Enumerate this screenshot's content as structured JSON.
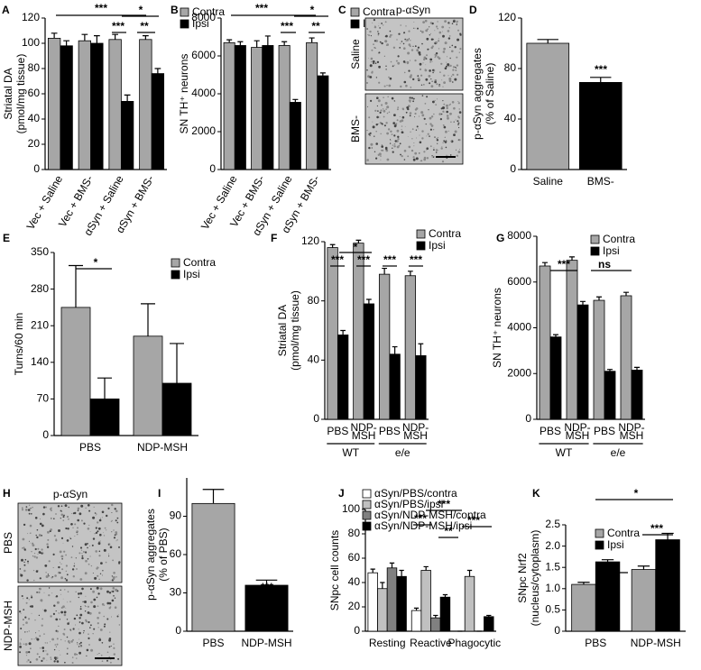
{
  "chart_data": [
    {
      "type": "bar",
      "panel": "A",
      "y_label": [
        "Striatal DA",
        "(pmol/mg tissue)"
      ],
      "categories": [
        "Vec + Saline",
        "Vec + BMS-",
        "αSyn + Saline",
        "αSyn + BMS-"
      ],
      "series": [
        {
          "name": "Contra",
          "color": "#a6a6a6",
          "values": [
            104,
            102,
            103,
            103
          ],
          "errors": [
            4,
            5,
            4,
            3
          ]
        },
        {
          "name": "Ipsi",
          "color": "#000000",
          "values": [
            98,
            100,
            54,
            76
          ],
          "errors": [
            4,
            6,
            5,
            4
          ]
        }
      ],
      "ylim": [
        0,
        120
      ],
      "yticks": [
        0,
        20,
        40,
        60,
        80,
        100,
        120
      ],
      "annotations": [
        "***",
        "*",
        "***",
        "**"
      ]
    },
    {
      "type": "bar",
      "panel": "B",
      "y_label": [
        "SN TH⁺ neurons"
      ],
      "categories": [
        "Vec + Saline",
        "Vec + BMS-",
        "αSyn + Saline",
        "αSyn + BMS-"
      ],
      "series": [
        {
          "name": "Contra",
          "color": "#a6a6a6",
          "values": [
            6700,
            6450,
            6550,
            6700
          ],
          "errors": [
            150,
            350,
            200,
            250
          ]
        },
        {
          "name": "Ipsi",
          "color": "#000000",
          "values": [
            6550,
            6550,
            3550,
            4950
          ],
          "errors": [
            200,
            500,
            150,
            150
          ]
        }
      ],
      "ylim": [
        0,
        8000
      ],
      "yticks": [
        0,
        2000,
        4000,
        6000,
        8000
      ],
      "annotations": [
        "***",
        "*",
        "***",
        "**"
      ]
    },
    {
      "type": "image",
      "panel": "C",
      "title": "p-αSyn",
      "labels": [
        "Saline",
        "BMS-"
      ]
    },
    {
      "type": "bar",
      "panel": "D",
      "y_label": [
        "p-αSyn aggregates",
        "(% of Saline)"
      ],
      "categories": [
        "Saline",
        "BMS-"
      ],
      "values": [
        100,
        69
      ],
      "errors": [
        3,
        4
      ],
      "colors": [
        "#a6a6a6",
        "#000000"
      ],
      "ylim": [
        0,
        120
      ],
      "yticks": [
        0,
        40,
        80,
        120
      ],
      "annotations": [
        "***"
      ]
    },
    {
      "type": "bar",
      "panel": "E",
      "y_label": [
        "Turns/60 min"
      ],
      "categories": [
        "PBS",
        "NDP-MSH"
      ],
      "series": [
        {
          "name": "Contra",
          "color": "#a6a6a6",
          "values": [
            245,
            190
          ],
          "errors": [
            80,
            62
          ]
        },
        {
          "name": "Ipsi",
          "color": "#000000",
          "values": [
            70,
            100
          ],
          "errors": [
            40,
            76
          ]
        }
      ],
      "ylim": [
        0,
        350
      ],
      "yticks": [
        0,
        70,
        140,
        210,
        280,
        350
      ],
      "annotations": [
        "*"
      ]
    },
    {
      "type": "bar",
      "panel": "F",
      "y_label": [
        "Striatal DA",
        "(pmol/mg tissue)"
      ],
      "categories": [
        [
          "PBS"
        ],
        [
          "NDP-",
          "MSH"
        ],
        [
          "PBS"
        ],
        [
          "NDP-",
          "MSH"
        ]
      ],
      "groups": [
        "WT",
        "e/e"
      ],
      "series": [
        {
          "name": "Contra",
          "color": "#a6a6a6",
          "values": [
            116,
            119,
            98,
            97
          ],
          "errors": [
            2,
            2,
            4,
            3
          ]
        },
        {
          "name": "Ipsi",
          "color": "#000000",
          "values": [
            57,
            78,
            44,
            43
          ],
          "errors": [
            3,
            3,
            5,
            8
          ]
        }
      ],
      "ylim": [
        0,
        120
      ],
      "yticks": [
        0,
        40,
        80,
        120
      ],
      "annotations": [
        "***",
        "***",
        "***",
        "***",
        "*"
      ]
    },
    {
      "type": "bar",
      "panel": "G",
      "y_label": [
        "SN TH⁺ neurons"
      ],
      "categories": [
        [
          "PBS"
        ],
        [
          "NDP-",
          "MSH"
        ],
        [
          "PBS"
        ],
        [
          "NDP-",
          "MSH"
        ]
      ],
      "groups": [
        "WT",
        "e/e"
      ],
      "series": [
        {
          "name": "Contra",
          "color": "#a6a6a6",
          "values": [
            6700,
            6950,
            5200,
            5400
          ],
          "errors": [
            150,
            150,
            150,
            150
          ]
        },
        {
          "name": "Ipsi",
          "color": "#000000",
          "values": [
            3600,
            5000,
            2100,
            2150
          ],
          "errors": [
            100,
            150,
            80,
            120
          ]
        }
      ],
      "ylim": [
        0,
        8000
      ],
      "yticks": [
        0,
        2000,
        4000,
        6000,
        8000
      ],
      "annotations": [
        "***",
        "ns"
      ]
    },
    {
      "type": "image",
      "panel": "H",
      "title": "p-αSyn",
      "labels": [
        "PBS",
        "NDP-MSH"
      ]
    },
    {
      "type": "bar",
      "panel": "I",
      "y_label": [
        "p-αSyn aggregates",
        "(% of PBS)"
      ],
      "categories": [
        "PBS",
        "NDP-MSH"
      ],
      "values": [
        100,
        36
      ],
      "errors": [
        11,
        4
      ],
      "colors": [
        "#a6a6a6",
        "#000000"
      ],
      "ylim": [
        0,
        120
      ],
      "yticks": [
        0,
        30,
        60,
        90
      ],
      "annotations": [
        "***"
      ]
    },
    {
      "type": "bar",
      "panel": "J",
      "y_label": [
        "SNpc cell counts"
      ],
      "categories": [
        "Resting",
        "Reactive",
        "Phagocytic"
      ],
      "series": [
        {
          "name": "αSyn/PBS/contra",
          "color": "#ffffff",
          "values": [
            48,
            17,
            0
          ],
          "errors": [
            3,
            2,
            0
          ]
        },
        {
          "name": "αSyn/PBS/ipsi",
          "color": "#c0c0c0",
          "values": [
            35,
            50,
            45
          ],
          "errors": [
            5,
            3,
            5
          ]
        },
        {
          "name": "αSyn/NDP-MSH/contra",
          "color": "#808080",
          "values": [
            52,
            11,
            0
          ],
          "errors": [
            4,
            2,
            0
          ]
        },
        {
          "name": "αSyn/NDP-MSH/ipsi",
          "color": "#000000",
          "values": [
            45,
            28,
            12
          ],
          "errors": [
            5,
            2,
            1
          ]
        }
      ],
      "ylim": [
        0,
        100
      ],
      "yticks": [
        0,
        20,
        40,
        60,
        80,
        100
      ],
      "annotations": [
        "***",
        "***",
        "**",
        "***"
      ]
    },
    {
      "type": "bar",
      "panel": "K",
      "y_label": [
        "SNpc Nrf2",
        "(nucleus/cytoplasm)"
      ],
      "categories": [
        "PBS",
        "NDP-MSH"
      ],
      "series": [
        {
          "name": "Contra",
          "color": "#a6a6a6",
          "values": [
            1.1,
            1.45
          ],
          "errors": [
            0.05,
            0.08
          ]
        },
        {
          "name": "Ipsi",
          "color": "#000000",
          "values": [
            1.63,
            2.15
          ],
          "errors": [
            0.05,
            0.15
          ]
        }
      ],
      "ylim": [
        0,
        2.5
      ],
      "yticks": [
        0,
        0.5,
        {
          "value": 1,
          "label": "1.0"
        },
        1.5,
        {
          "value": 2,
          "label": "2.0"
        },
        2.5
      ],
      "annotations": [
        "*",
        "***",
        "*"
      ]
    }
  ]
}
